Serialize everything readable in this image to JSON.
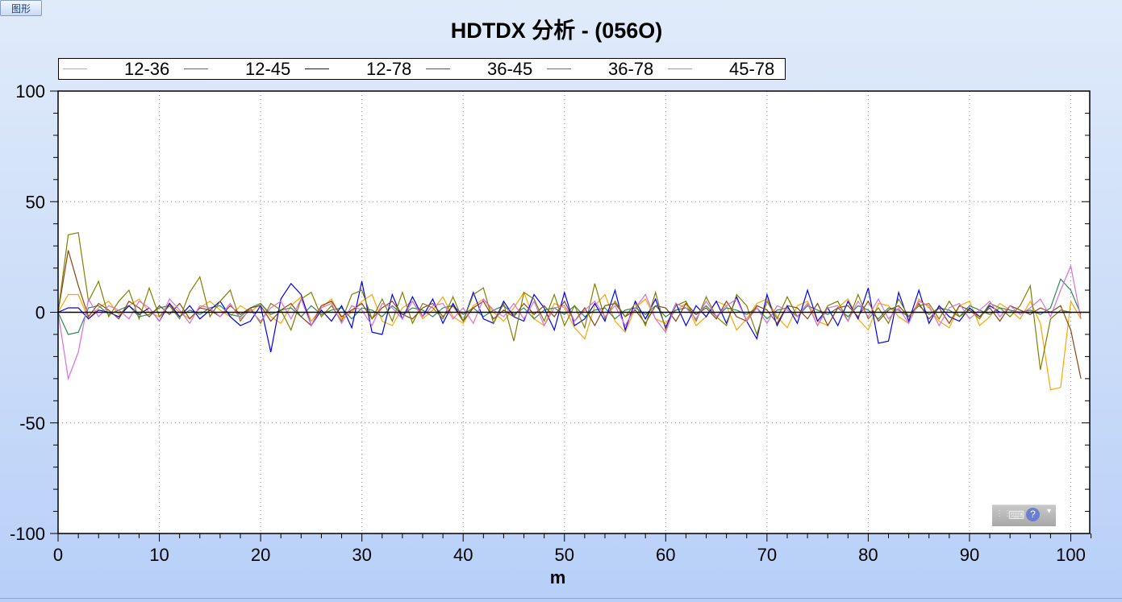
{
  "tab": {
    "label": "图形"
  },
  "chart_data": {
    "type": "line",
    "title": "HDTDX 分析 - (056O)",
    "xlabel": "m",
    "ylabel": "",
    "xlim": [
      0,
      102
    ],
    "ylim": [
      -100,
      100
    ],
    "x_start": 0,
    "x_step": 1,
    "x_ticks": [
      "0",
      "10",
      "20",
      "30",
      "40",
      "50",
      "60",
      "70",
      "80",
      "90",
      "100"
    ],
    "y_ticks": [
      "100",
      "50",
      "0",
      "-50",
      "-100"
    ],
    "grid": "dotted",
    "legend_position": "top",
    "series": [
      {
        "name": "12-36",
        "color": "#ffa500",
        "values": [
          0,
          8,
          8,
          -3,
          2,
          5,
          -1,
          3,
          6,
          0,
          -2,
          4,
          0,
          -3,
          2,
          5,
          1,
          -2,
          3,
          0,
          4,
          -2,
          -5,
          3,
          7,
          -4,
          2,
          6,
          -3,
          0,
          5,
          8,
          -4,
          -6,
          2,
          5,
          -3,
          1,
          7,
          -2,
          -5,
          3,
          6,
          0,
          -4,
          2,
          9,
          -3,
          -6,
          4,
          2,
          -7,
          -12,
          3,
          8,
          -4,
          -9,
          2,
          6,
          -3,
          -5,
          1,
          4,
          -6,
          -2,
          5,
          3,
          -8,
          -3,
          4,
          6,
          -2,
          -7,
          3,
          5,
          -4,
          -6,
          2,
          6,
          -3,
          -8,
          4,
          3,
          -2,
          -5,
          6,
          2,
          -4,
          -7,
          3,
          5,
          -6,
          -2,
          4,
          1,
          -3,
          5,
          -5,
          -35,
          -34,
          5,
          -3
        ]
      },
      {
        "name": "12-45",
        "color": "#2e8b57",
        "values": [
          0,
          -10,
          -9,
          2,
          3,
          -1,
          1,
          3,
          -2,
          -1,
          2,
          3,
          -2,
          1,
          -1,
          2,
          3,
          -1,
          -2,
          2,
          4,
          -1,
          1,
          2,
          -2,
          3,
          -1,
          1,
          2,
          -3,
          2,
          1,
          -2,
          3,
          -1,
          2,
          1,
          -2,
          2,
          3,
          -1,
          2,
          -2,
          1,
          3,
          -1,
          2,
          -3,
          1,
          2,
          -1,
          3,
          -2,
          1,
          2,
          -3,
          1,
          2,
          -1,
          3,
          -2,
          1,
          2,
          -1,
          3,
          -2,
          2,
          1,
          -1,
          2,
          -3,
          1,
          2,
          -2,
          3,
          1,
          -1,
          2,
          -2,
          3,
          1,
          -3,
          2,
          1,
          -2,
          3,
          -1,
          2,
          1,
          -2,
          3,
          1,
          -1,
          2,
          1,
          0,
          1,
          -1,
          2,
          15,
          10,
          -1
        ]
      },
      {
        "name": "12-78",
        "color": "#0000ff",
        "values": [
          0,
          2,
          2,
          -3,
          1,
          0,
          -2,
          3,
          -1,
          2,
          -4,
          4,
          -2,
          3,
          -3,
          1,
          5,
          -2,
          -6,
          -4,
          3,
          -18,
          6,
          13,
          8,
          -6,
          1,
          -4,
          3,
          -7,
          14,
          -9,
          -10,
          8,
          -3,
          7,
          -2,
          6,
          -5,
          4,
          -4,
          9,
          -3,
          -5,
          5,
          -2,
          -4,
          8,
          2,
          -8,
          9,
          -6,
          -3,
          4,
          -4,
          10,
          -8,
          5,
          -3,
          6,
          -7,
          4,
          -6,
          3,
          -2,
          5,
          -5,
          7,
          -4,
          -12,
          8,
          -6,
          3,
          -5,
          10,
          -4,
          2,
          -6,
          5,
          -3,
          11,
          -14,
          -13,
          9,
          -4,
          10,
          -5,
          3,
          -2,
          -4,
          2,
          -2,
          3,
          0,
          0,
          0,
          0,
          0,
          0,
          0,
          0
        ]
      },
      {
        "name": "36-45",
        "color": "#8b4513",
        "values": [
          0,
          28,
          12,
          -2,
          4,
          1,
          -3,
          5,
          2,
          -2,
          3,
          -1,
          4,
          -3,
          2,
          1,
          -2,
          3,
          -1,
          2,
          3,
          -4,
          1,
          4,
          -2,
          -6,
          3,
          5,
          -2,
          1,
          4,
          -3,
          2,
          5,
          -1,
          -3,
          2,
          4,
          -2,
          3,
          -4,
          2,
          5,
          -3,
          1,
          -2,
          4,
          -1,
          3,
          -2,
          5,
          -4,
          2,
          -6,
          3,
          4,
          -2,
          1,
          -5,
          3,
          2,
          -4,
          4,
          -1,
          2,
          -3,
          5,
          -2,
          -4,
          3,
          1,
          -5,
          3,
          2,
          -3,
          4,
          -6,
          2,
          3,
          -2,
          5,
          -4,
          1,
          3,
          -2,
          4,
          -3,
          2,
          -5,
          3,
          1,
          -2,
          2,
          -4,
          3,
          1,
          -1,
          2,
          0,
          3,
          -8,
          -30
        ]
      },
      {
        "name": "36-78",
        "color": "#808000",
        "values": [
          0,
          35,
          36,
          5,
          14,
          -2,
          5,
          10,
          -3,
          11,
          -2,
          3,
          -3,
          9,
          16,
          -2,
          5,
          10,
          -4,
          2,
          -5,
          4,
          1,
          -8,
          6,
          9,
          -2,
          3,
          -4,
          8,
          10,
          -3,
          6,
          -4,
          9,
          -5,
          4,
          2,
          -3,
          7,
          -4,
          8,
          11,
          -5,
          4,
          -13,
          9,
          6,
          -4,
          8,
          -6,
          3,
          -7,
          13,
          -3,
          5,
          -2,
          4,
          -6,
          9,
          -8,
          3,
          5,
          -4,
          7,
          -2,
          -6,
          8,
          3,
          -10,
          5,
          -3,
          7,
          -2,
          4,
          -6,
          3,
          5,
          -4,
          8,
          -3,
          2,
          -5,
          6,
          -2,
          3,
          4,
          -3,
          5,
          -2,
          1,
          -3,
          4,
          2,
          -2,
          3,
          12,
          -26,
          -3,
          1,
          0
        ]
      },
      {
        "name": "45-78",
        "color": "#da70d6",
        "values": [
          0,
          -30,
          -18,
          6,
          -2,
          3,
          1,
          -3,
          5,
          2,
          -4,
          6,
          1,
          -5,
          3,
          2,
          -2,
          4,
          -3,
          1,
          -4,
          2,
          5,
          -3,
          6,
          -6,
          2,
          4,
          -5,
          3,
          1,
          -6,
          4,
          2,
          -3,
          5,
          -2,
          3,
          4,
          -3,
          2,
          -5,
          6,
          1,
          -2,
          4,
          -3,
          5,
          -6,
          2,
          3,
          -4,
          1,
          5,
          -2,
          3,
          -6,
          2,
          8,
          -3,
          -9,
          4,
          2,
          -3,
          5,
          -2,
          3,
          6,
          -4,
          2,
          -5,
          3,
          1,
          -2,
          4,
          -6,
          2,
          3,
          -4,
          5,
          -2,
          6,
          -3,
          2,
          -5,
          5,
          3,
          -6,
          2,
          4,
          -3,
          1,
          5,
          -2,
          3,
          -1,
          2,
          6,
          -2,
          10,
          21,
          -3
        ]
      }
    ]
  }
}
